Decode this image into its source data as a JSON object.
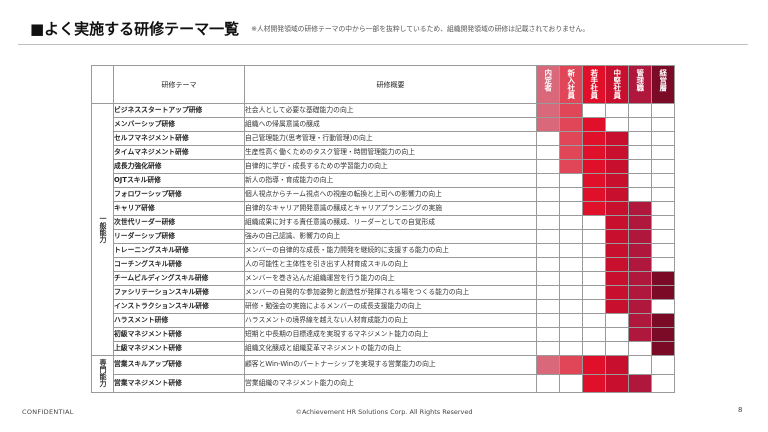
{
  "header": {
    "title": "■よく実施する研修テーマ一覧",
    "note": "※人材開発領域の研修テーマの中から一部を抜粋しているため、組織開発領域の研修は記載されておりません。"
  },
  "table": {
    "col_theme": "研修テーマ",
    "col_summary": "研修概要",
    "levels": [
      {
        "label": "内定者",
        "color": "#d9697a"
      },
      {
        "label": "新入社員",
        "color": "#e04558"
      },
      {
        "label": "若手社員",
        "color": "#e0102b"
      },
      {
        "label": "中堅社員",
        "color": "#c8102e"
      },
      {
        "label": "管理職",
        "color": "#b0173c"
      },
      {
        "label": "経営層",
        "color": "#7a0a26"
      }
    ],
    "categories": [
      {
        "label": "一般能力",
        "rows": 18
      },
      {
        "label": "専門能力",
        "rows": 2
      }
    ],
    "rows": [
      {
        "theme": "ビジネススタートアップ研修",
        "summary": "社会人として必要な基礎能力の向上",
        "marks": [
          1,
          1,
          0,
          0,
          0,
          0
        ]
      },
      {
        "theme": "メンバーシップ研修",
        "summary": "組織への帰属意識の醸成",
        "marks": [
          1,
          1,
          1,
          0,
          0,
          0
        ]
      },
      {
        "theme": "セルフマネジメント研修",
        "summary": "自己管理能力(思考管理・行動管理)の向上",
        "marks": [
          0,
          1,
          1,
          1,
          0,
          0
        ]
      },
      {
        "theme": "タイムマネジメント研修",
        "summary": "生産性高く働くためのタスク管理・時間管理能力の向上",
        "marks": [
          0,
          1,
          1,
          1,
          0,
          0
        ]
      },
      {
        "theme": "成長力強化研修",
        "summary": "自律的に学び・成長するための学習能力の向上",
        "marks": [
          0,
          1,
          1,
          1,
          0,
          0
        ]
      },
      {
        "theme": "OJTスキル研修",
        "summary": "新人の指導・育成能力の向上",
        "marks": [
          0,
          0,
          1,
          1,
          0,
          0
        ]
      },
      {
        "theme": "フォロワーシップ研修",
        "summary": "個人視点からチーム視点への視座の転換と上司への影響力の向上",
        "marks": [
          0,
          0,
          1,
          1,
          0,
          0
        ]
      },
      {
        "theme": "キャリア研修",
        "summary": "自律的なキャリア開発意識の醸成とキャリアプランニングの実施",
        "marks": [
          0,
          0,
          1,
          1,
          1,
          0
        ]
      },
      {
        "theme": "次世代リーダー研修",
        "summary": "組織成果に対する責任意識の醸成、リーダーとしての自覚形成",
        "marks": [
          0,
          0,
          0,
          1,
          1,
          0
        ]
      },
      {
        "theme": "リーダーシップ研修",
        "summary": "強みの自己認識、影響力の向上",
        "marks": [
          0,
          0,
          0,
          1,
          1,
          0
        ]
      },
      {
        "theme": "トレーニングスキル研修",
        "summary": "メンバーの自律的な成長・能力開発を継続的に支援する能力の向上",
        "marks": [
          0,
          0,
          0,
          1,
          1,
          0
        ]
      },
      {
        "theme": "コーチングスキル研修",
        "summary": "人の可能性と主体性を引き出す人材育成スキルの向上",
        "marks": [
          0,
          0,
          0,
          1,
          1,
          0
        ]
      },
      {
        "theme": "チームビルディングスキル研修",
        "summary": "メンバーを巻き込んだ組織運営を行う能力の向上",
        "marks": [
          0,
          0,
          0,
          1,
          1,
          1
        ]
      },
      {
        "theme": "ファシリテーションスキル研修",
        "summary": "メンバーの自発的な参加姿勢と創造性が発揮される場をつくる能力の向上",
        "marks": [
          0,
          0,
          0,
          1,
          1,
          1
        ]
      },
      {
        "theme": "インストラクションスキル研修",
        "summary": "研修・勉強会の実施によるメンバーの成長支援能力の向上",
        "marks": [
          0,
          0,
          0,
          1,
          1,
          0
        ]
      },
      {
        "theme": "ハラスメント研修",
        "summary": "ハラスメントの境界線を越えない人材育成能力の向上",
        "marks": [
          0,
          0,
          0,
          0,
          1,
          1
        ]
      },
      {
        "theme": "初級マネジメント研修",
        "summary": "短期と中長期の目標達成を実現するマネジメント能力の向上",
        "marks": [
          0,
          0,
          0,
          0,
          1,
          1
        ]
      },
      {
        "theme": "上級マネジメント研修",
        "summary": "組織文化醸成と組織変革マネジメントの能力の向上",
        "marks": [
          0,
          0,
          0,
          0,
          0,
          1
        ]
      },
      {
        "theme": "営業スキルアップ研修",
        "summary": "顧客とWin-Winのパートナーシップを実現する営業能力の向上",
        "marks": [
          1,
          1,
          1,
          1,
          0,
          0
        ]
      },
      {
        "theme": "営業マネジメント研修",
        "summary": "営業組織のマネジメント能力の向上",
        "marks": [
          0,
          0,
          1,
          1,
          1,
          0
        ]
      }
    ]
  },
  "footer": {
    "left": "CONFIDENTIAL",
    "center": "©Achievement HR Solutions Corp. All Rights Reserved",
    "page": "8"
  }
}
